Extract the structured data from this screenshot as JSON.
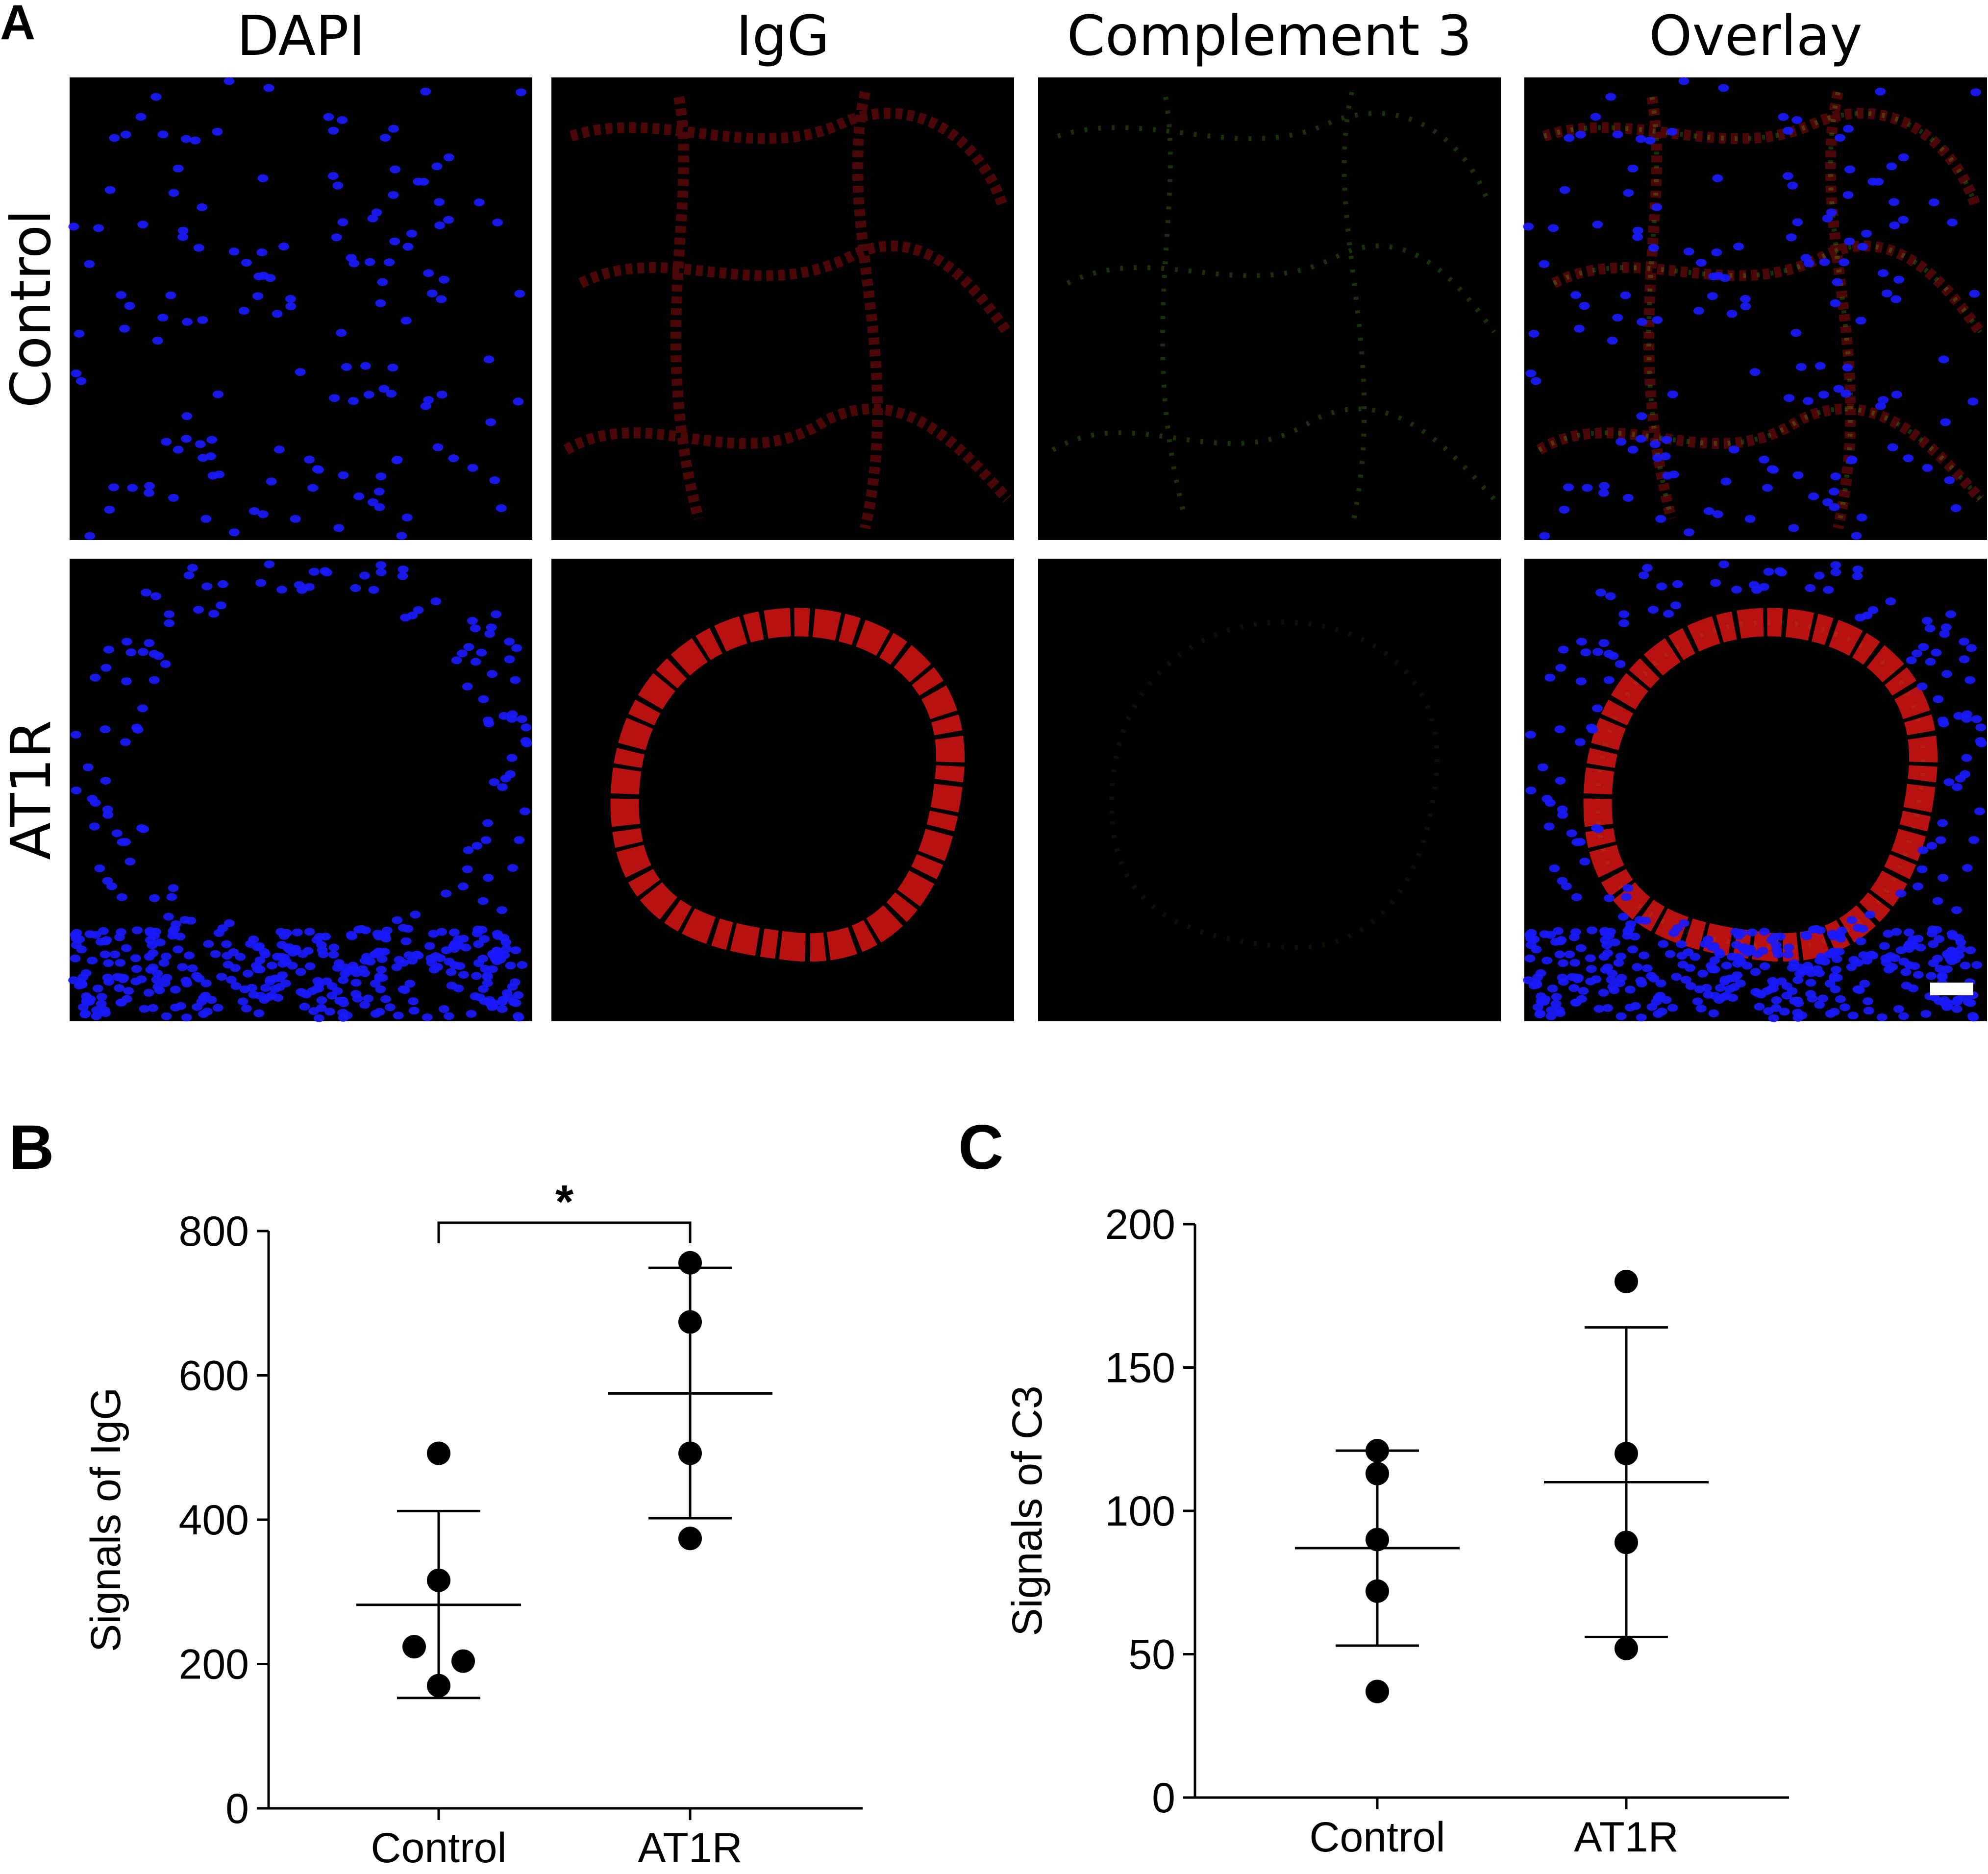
{
  "panel_a": {
    "letter": "A",
    "columns": [
      "DAPI",
      "IgG",
      "Complement 3",
      "Overlay"
    ],
    "rows": [
      "Control",
      "AT1R"
    ]
  },
  "colors": {
    "dapi": "#1a1aff",
    "igg": "#d81414",
    "c3": "#6fe12a",
    "tile_bg": "#000000",
    "scale_bar": "#ffffff"
  },
  "chart_data": [
    {
      "panel": "B",
      "type": "scatter",
      "ylabel": "Signals of IgG",
      "categories": [
        "Control",
        "AT1R"
      ],
      "ylim": [
        0,
        800
      ],
      "yticks": [
        0,
        200,
        400,
        600,
        800
      ],
      "series": [
        {
          "category": "Control",
          "values": [
            492,
            316,
            224,
            204,
            170
          ],
          "mean": 282,
          "sd_low": 153,
          "sd_high": 412
        },
        {
          "category": "AT1R",
          "values": [
            756,
            674,
            492,
            374
          ],
          "mean": 575,
          "sd_low": 402,
          "sd_high": 749
        }
      ],
      "annotation": {
        "text": "*",
        "from": "Control",
        "to": "AT1R"
      }
    },
    {
      "panel": "C",
      "type": "scatter",
      "ylabel": "Signals of C3",
      "categories": [
        "Control",
        "AT1R"
      ],
      "ylim": [
        0,
        200
      ],
      "yticks": [
        0,
        50,
        100,
        150,
        200
      ],
      "series": [
        {
          "category": "Control",
          "values": [
            121,
            113,
            90,
            72,
            37
          ],
          "mean": 87,
          "sd_low": 53,
          "sd_high": 121
        },
        {
          "category": "AT1R",
          "values": [
            180,
            120,
            89,
            52
          ],
          "mean": 110,
          "sd_low": 56,
          "sd_high": 164
        }
      ]
    }
  ]
}
